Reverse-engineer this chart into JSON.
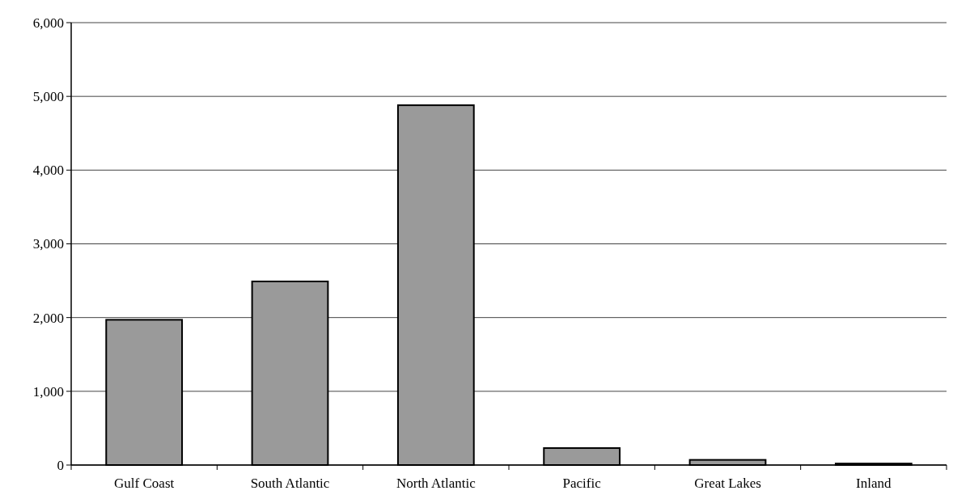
{
  "chart_data": {
    "type": "bar",
    "categories": [
      "Gulf Coast",
      "South Atlantic",
      "North Atlantic",
      "Pacific",
      "Great Lakes",
      "Inland"
    ],
    "values": [
      1970,
      2490,
      4880,
      230,
      70,
      20
    ],
    "color": "#9a9a9a",
    "ylim": [
      0,
      6000
    ],
    "yticks": [
      {
        "value": 0,
        "label": "0"
      },
      {
        "value": 1000,
        "label": "1,000"
      },
      {
        "value": 2000,
        "label": "2,000"
      },
      {
        "value": 3000,
        "label": "3,000"
      },
      {
        "value": 4000,
        "label": "4,000"
      },
      {
        "value": 5000,
        "label": "5,000"
      },
      {
        "value": 6000,
        "label": "6,000"
      }
    ],
    "grid": "y"
  }
}
